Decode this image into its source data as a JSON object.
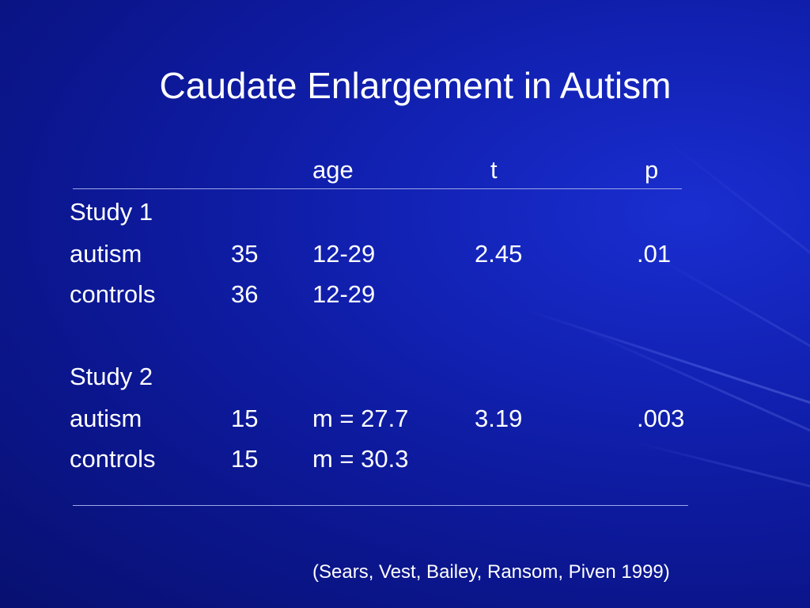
{
  "slide": {
    "title": "Caudate Enlargement in Autism",
    "columns": {
      "age": "age",
      "t": "t",
      "p": "p"
    },
    "studies": [
      {
        "label": "Study 1",
        "rows": [
          {
            "group": "autism",
            "n": "35",
            "age": "12-29",
            "t": "2.45",
            "p": ".01"
          },
          {
            "group": "controls",
            "n": "36",
            "age": "12-29",
            "t": "",
            "p": ""
          }
        ]
      },
      {
        "label": "Study 2",
        "rows": [
          {
            "group": "autism",
            "n": "15",
            "age": "m = 27.7",
            "t": "3.19",
            "p": ".003"
          },
          {
            "group": "controls",
            "n": "15",
            "age": "m = 30.3",
            "t": "",
            "p": ""
          }
        ]
      }
    ],
    "citation": "(Sears, Vest, Bailey, Ransom, Piven 1999)",
    "colors": {
      "background": "#0c1896",
      "text": "#ffffff",
      "rule": "#9fa8e8"
    }
  }
}
